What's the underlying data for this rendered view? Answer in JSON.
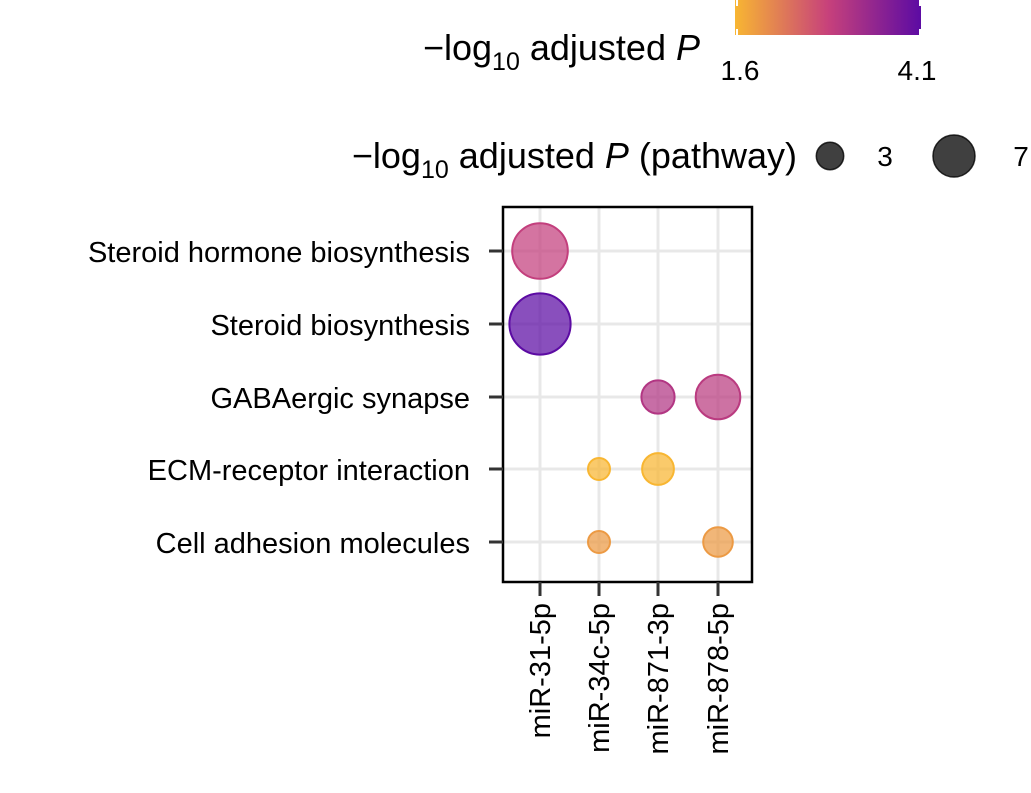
{
  "chart_data": {
    "type": "scatter",
    "categories_x": [
      "miR-31-5p",
      "miR-34c-5p",
      "miR-871-3p",
      "miR-878-5p"
    ],
    "categories_y": [
      "Steroid hormone biosynthesis",
      "Steroid biosynthesis",
      "GABAergic synapse",
      "ECM-receptor interaction",
      "Cell adhesion molecules"
    ],
    "points": [
      {
        "x": "miR-31-5p",
        "y": "Steroid hormone biosynthesis",
        "color_value": 2.9,
        "size_value": 7.0
      },
      {
        "x": "miR-31-5p",
        "y": "Steroid biosynthesis",
        "color_value": 4.1,
        "size_value": 8.5
      },
      {
        "x": "miR-871-3p",
        "y": "GABAergic synapse",
        "color_value": 3.1,
        "size_value": 2.5
      },
      {
        "x": "miR-878-5p",
        "y": "GABAergic synapse",
        "color_value": 3.0,
        "size_value": 4.5
      },
      {
        "x": "miR-34c-5p",
        "y": "ECM-receptor interaction",
        "color_value": 1.6,
        "size_value": 1.1
      },
      {
        "x": "miR-871-3p",
        "y": "ECM-receptor interaction",
        "color_value": 1.6,
        "size_value": 2.3
      },
      {
        "x": "miR-34c-5p",
        "y": "Cell adhesion molecules",
        "color_value": 1.9,
        "size_value": 1.1
      },
      {
        "x": "miR-878-5p",
        "y": "Cell adhesion molecules",
        "color_value": 1.9,
        "size_value": 2.0
      }
    ],
    "color_legend": {
      "title_prefix": "−log",
      "title_sub": "10",
      "title_main": " adjusted ",
      "title_italic": "P",
      "title_suffix": "",
      "min": 1.6,
      "max": 4.1,
      "min_label": "1.6",
      "max_label": "4.1",
      "colors": [
        "#f8b632",
        "#c7417b",
        "#5c0ba3"
      ]
    },
    "size_legend": {
      "title_prefix": "−log",
      "title_sub": "10",
      "title_main": " adjusted ",
      "title_italic": "P",
      "title_suffix": " (pathway)",
      "entries": [
        {
          "value": 3,
          "label": "3"
        },
        {
          "value": 7,
          "label": "7"
        }
      ],
      "fill": "#404040"
    },
    "grid": true,
    "legend_position": "top"
  }
}
